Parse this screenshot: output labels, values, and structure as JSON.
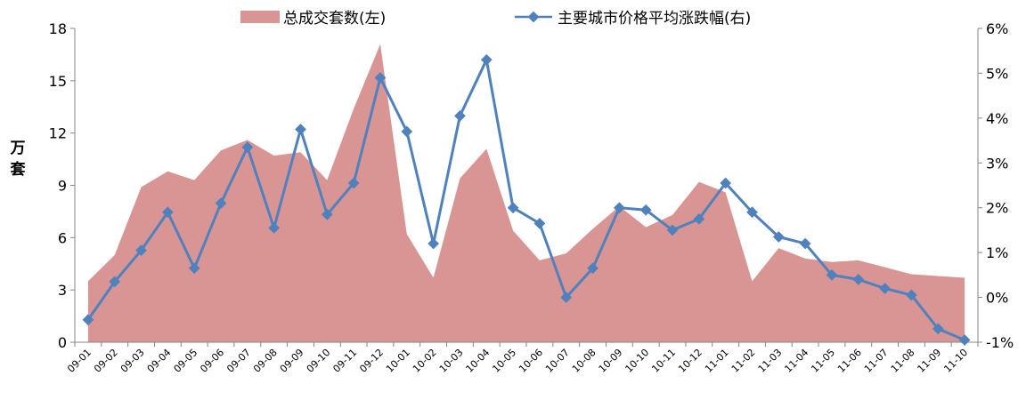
{
  "chart_data": {
    "type": "line",
    "categories": [
      "09-01",
      "09-02",
      "09-03",
      "09-04",
      "09-05",
      "09-06",
      "09-07",
      "09-08",
      "09-09",
      "09-10",
      "09-11",
      "09-12",
      "10-01",
      "10-02",
      "10-03",
      "10-04",
      "10-05",
      "10-06",
      "10-07",
      "10-08",
      "10-09",
      "10-10",
      "10-11",
      "10-12",
      "11-01",
      "11-02",
      "11-03",
      "11-04",
      "11-05",
      "11-06",
      "11-07",
      "11-08",
      "11-09",
      "11-10"
    ],
    "series": [
      {
        "name": "总成交套数(左)",
        "type": "area",
        "axis": "left",
        "color": "#d99594",
        "values": [
          3.5,
          5.0,
          8.9,
          9.8,
          9.3,
          11.0,
          11.6,
          10.7,
          10.9,
          9.3,
          13.4,
          17.1,
          6.2,
          3.7,
          9.4,
          11.1,
          6.4,
          4.7,
          5.1,
          6.5,
          7.8,
          6.6,
          7.3,
          9.2,
          8.6,
          3.5,
          5.4,
          4.8,
          4.6,
          4.7,
          4.3,
          3.9,
          3.8,
          3.7
        ]
      },
      {
        "name": "主要城市价格平均涨跌幅(右)",
        "type": "line",
        "axis": "right",
        "color": "#4f81bd",
        "values": [
          -0.5,
          0.35,
          1.05,
          1.9,
          0.65,
          2.1,
          3.35,
          1.55,
          3.75,
          1.85,
          2.55,
          4.9,
          3.7,
          1.2,
          4.05,
          5.3,
          2.0,
          1.65,
          0.0,
          0.65,
          2.0,
          1.95,
          1.5,
          1.75,
          2.55,
          1.9,
          1.35,
          1.2,
          0.5,
          0.4,
          0.2,
          0.05,
          -0.7,
          -0.95
        ]
      }
    ],
    "ylabel": "万套",
    "yticks": [
      "0",
      "3",
      "6",
      "9",
      "12",
      "15",
      "18"
    ],
    "y2ticks": [
      "-1%",
      "0%",
      "1%",
      "2%",
      "3%",
      "4%",
      "5%",
      "6%"
    ],
    "ylim": [
      0,
      18
    ],
    "y2lim": [
      -1,
      6
    ],
    "grid": false,
    "legend_position": "top"
  }
}
